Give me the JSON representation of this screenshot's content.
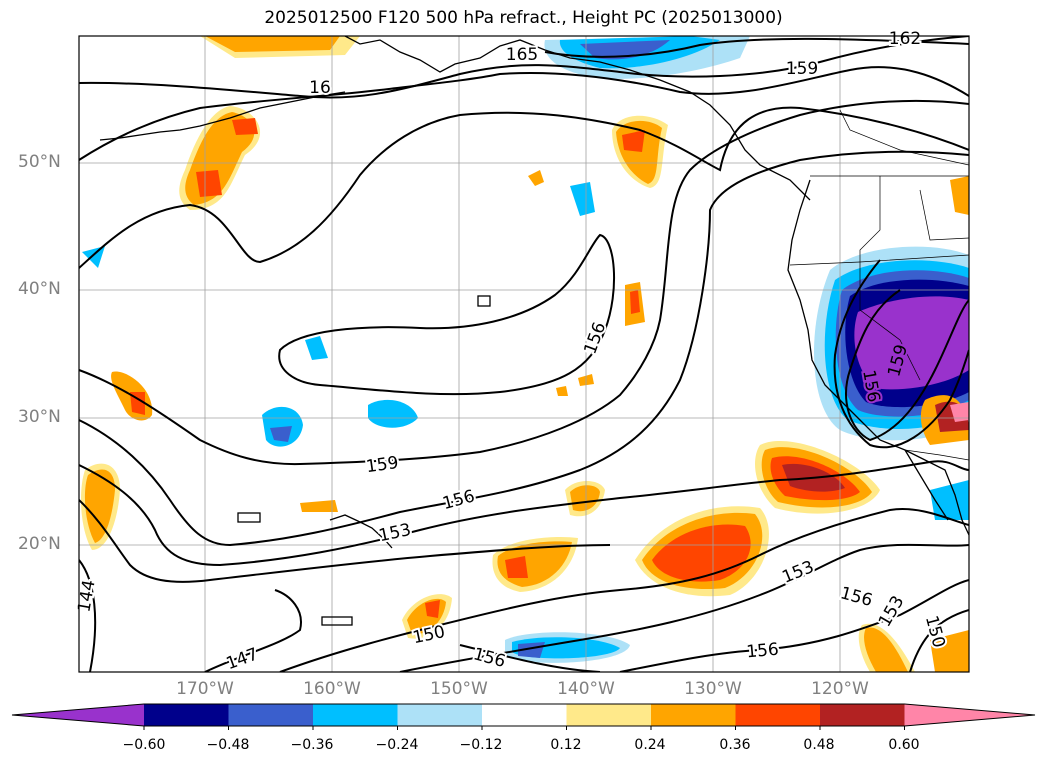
{
  "title": "2025012500 F120 500 hPa refract., Height PC (2025013000)",
  "lat_labels": [
    "50°N",
    "40°N",
    "30°N",
    "20°N"
  ],
  "lon_labels": [
    "170°W",
    "160°W",
    "150°W",
    "140°W",
    "130°W",
    "120°W"
  ],
  "contour_labels": [
    "165",
    "162",
    "159",
    "16",
    "156",
    "159",
    "156",
    "153",
    "144",
    "147",
    "150",
    "156",
    "153",
    "156",
    "153",
    "150",
    "159",
    "156",
    "156"
  ],
  "colorbar": {
    "ticks": [
      "−0.60",
      "−0.48",
      "−0.36",
      "−0.24",
      "−0.12",
      "0.12",
      "0.24",
      "0.36",
      "0.48",
      "0.60"
    ],
    "colors": [
      "#9932CC",
      "#00008B",
      "#3A5FCD",
      "#00BFFF",
      "#ADE1F7",
      "#FFFFFF",
      "#FFE98A",
      "#FFA500",
      "#FF4500",
      "#B22222",
      "#FF85A8"
    ]
  },
  "colors": {
    "purple": "#9932CC",
    "navy": "#00008B",
    "royal": "#3A5FCD",
    "sky": "#00BFFF",
    "pale": "#ADE1F7",
    "yellow": "#FFE98A",
    "orange": "#FFA500",
    "red": "#FF4500",
    "darkred": "#B22222",
    "pink": "#FF85A8",
    "grid": "#A0A0A0",
    "axis_text": "#808080"
  }
}
